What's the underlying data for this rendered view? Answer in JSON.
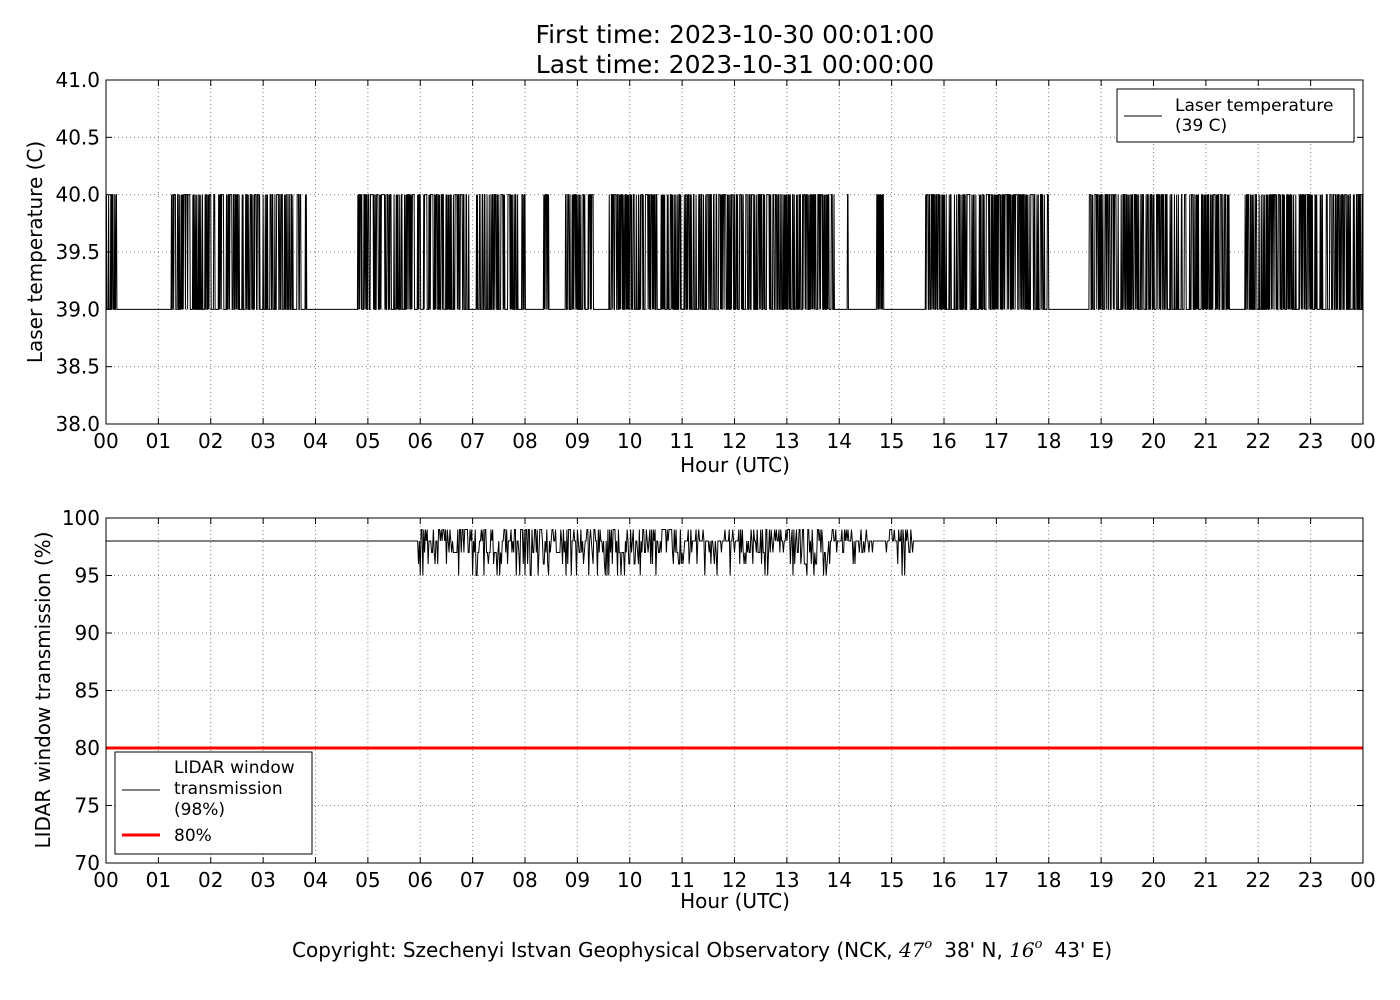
{
  "header": {
    "first_time": "First time: 2023-10-30 00:01:00",
    "last_time": "Last time: 2023-10-31 00:00:00"
  },
  "footer": {
    "copyright_prefix": "Copyright: Szechenyi Istvan Geophysical Observatory (NCK, ",
    "lat_deg": "47",
    "lat_deg_sup": "o",
    "lat_min": "38' N, ",
    "lon_deg": "16",
    "lon_deg_sup": "o",
    "lon_min": "43' E)"
  },
  "colors": {
    "series": "#000000",
    "threshold": "#ff0000",
    "grid": "#808080"
  },
  "chart_data": [
    {
      "type": "line",
      "xlabel": "Hour (UTC)",
      "ylabel": "Laser temperature (C)",
      "xlim": [
        0,
        24
      ],
      "ylim": [
        38.0,
        41.0
      ],
      "x_tick_labels": [
        "00",
        "01",
        "02",
        "03",
        "04",
        "05",
        "06",
        "07",
        "08",
        "09",
        "10",
        "11",
        "12",
        "13",
        "14",
        "15",
        "16",
        "17",
        "18",
        "19",
        "20",
        "21",
        "22",
        "23",
        "00"
      ],
      "y_ticks": [
        38.0,
        38.5,
        39.0,
        39.5,
        40.0,
        40.5,
        41.0
      ],
      "y_tick_labels": [
        "38.0",
        "38.5",
        "39.0",
        "39.5",
        "40.0",
        "40.5",
        "41.0"
      ],
      "grid": true,
      "legend_position": "top-right",
      "series": [
        {
          "name": "Laser temperature\n(39 C)",
          "legend_lines": [
            "Laser temperature",
            "(39 C)"
          ],
          "baseline": 39.0,
          "high": 40.0,
          "active_windows": [
            [
              0.0,
              0.2
            ],
            [
              1.25,
              2.55
            ],
            [
              2.6,
              3.85
            ],
            [
              4.8,
              6.95
            ],
            [
              7.05,
              8.0
            ],
            [
              8.35,
              8.45
            ],
            [
              8.75,
              9.3
            ],
            [
              9.6,
              11.8
            ],
            [
              11.8,
              13.9
            ],
            [
              14.15,
              14.2
            ],
            [
              14.7,
              14.85
            ],
            [
              15.65,
              16.95
            ],
            [
              16.95,
              18.0
            ],
            [
              18.75,
              21.45
            ],
            [
              21.75,
              24.0
            ]
          ]
        }
      ]
    },
    {
      "type": "line",
      "xlabel": "Hour (UTC)",
      "ylabel": "LIDAR window transmission (%)",
      "xlim": [
        0,
        24
      ],
      "ylim": [
        70,
        100
      ],
      "x_tick_labels": [
        "00",
        "01",
        "02",
        "03",
        "04",
        "05",
        "06",
        "07",
        "08",
        "09",
        "10",
        "11",
        "12",
        "13",
        "14",
        "15",
        "16",
        "17",
        "18",
        "19",
        "20",
        "21",
        "22",
        "23",
        "00"
      ],
      "y_ticks": [
        70,
        75,
        80,
        85,
        90,
        95,
        100
      ],
      "y_tick_labels": [
        "70",
        "75",
        "80",
        "85",
        "90",
        "95",
        "100"
      ],
      "grid": true,
      "legend_position": "lower-left",
      "series": [
        {
          "name": "LIDAR window\ntransmission\n(98%)",
          "legend_lines": [
            "LIDAR window",
            "transmission",
            "(98%)"
          ],
          "baseline": 98,
          "active_windows": [
            [
              5.95,
              15.4
            ]
          ],
          "min": 95,
          "max": 99
        },
        {
          "name": "80%",
          "legend_lines": [
            "80%"
          ],
          "constant": 80
        }
      ]
    }
  ]
}
